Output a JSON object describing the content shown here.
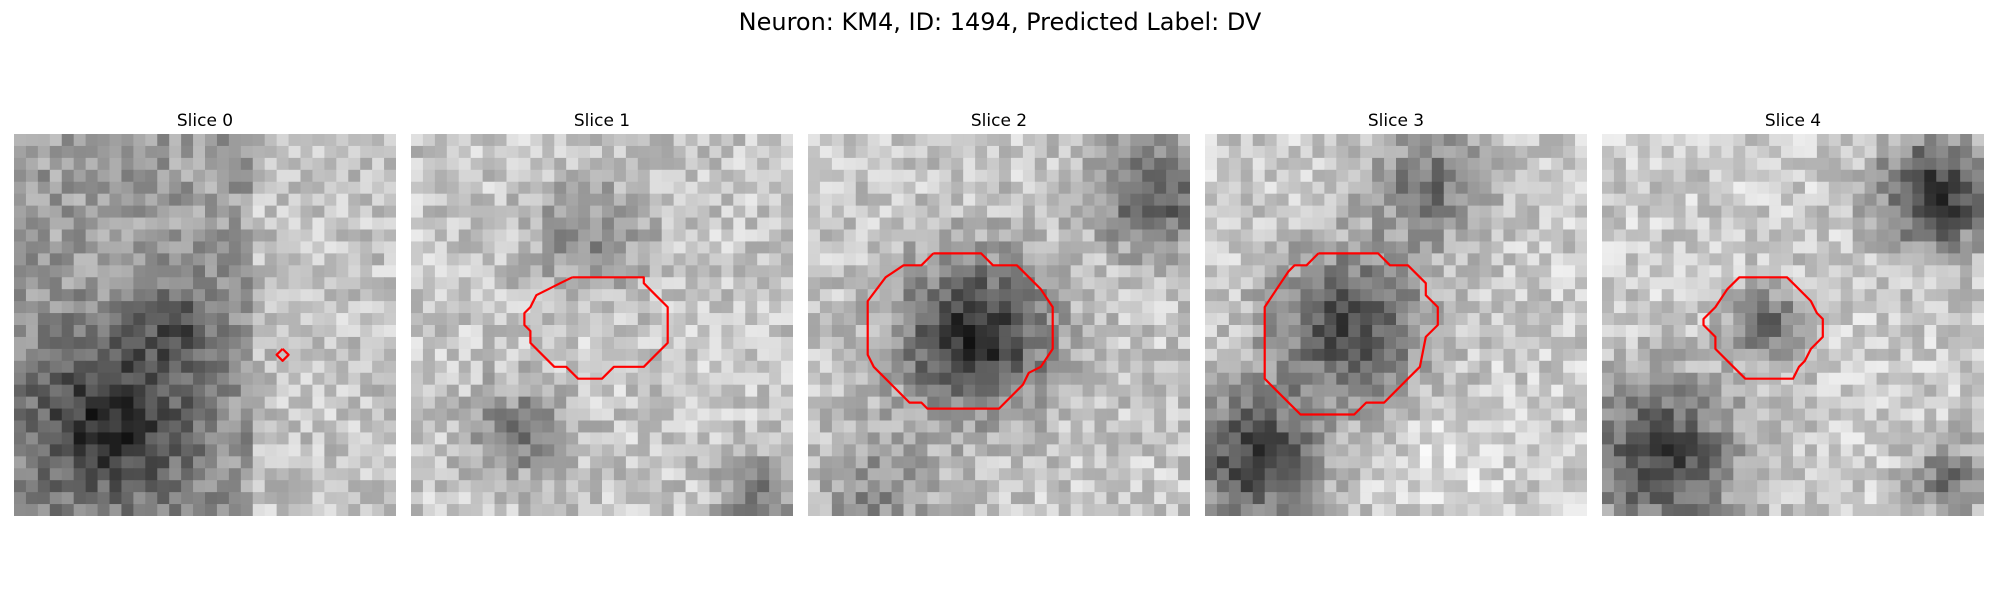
{
  "figure": {
    "title": "Neuron: KM4, ID: 1494, Predicted Label: DV"
  },
  "panels": [
    {
      "title": "Slice 0",
      "contour": [
        [
          22.5,
          18.0
        ],
        [
          23.0,
          18.5
        ],
        [
          22.5,
          19.0
        ],
        [
          22.0,
          18.5
        ],
        [
          22.5,
          18.0
        ]
      ]
    },
    {
      "title": "Slice 1",
      "contour": [
        [
          13.5,
          12.0
        ],
        [
          19.5,
          12.0
        ],
        [
          19.5,
          12.5
        ],
        [
          20.5,
          13.5
        ],
        [
          21.5,
          14.5
        ],
        [
          21.5,
          17.5
        ],
        [
          20.5,
          18.5
        ],
        [
          19.5,
          19.5
        ],
        [
          17.0,
          19.5
        ],
        [
          16.0,
          20.5
        ],
        [
          14.0,
          20.5
        ],
        [
          13.0,
          19.5
        ],
        [
          12.0,
          19.5
        ],
        [
          11.0,
          18.5
        ],
        [
          10.0,
          17.5
        ],
        [
          10.0,
          16.5
        ],
        [
          9.5,
          16.0
        ],
        [
          9.5,
          15.0
        ],
        [
          10.0,
          14.5
        ],
        [
          10.5,
          13.5
        ],
        [
          11.5,
          13.0
        ],
        [
          12.5,
          12.5
        ],
        [
          13.5,
          12.0
        ]
      ]
    },
    {
      "title": "Slice 2",
      "contour": [
        [
          10.5,
          10.0
        ],
        [
          14.5,
          10.0
        ],
        [
          15.5,
          11.0
        ],
        [
          17.5,
          11.0
        ],
        [
          19.5,
          13.0
        ],
        [
          20.5,
          14.5
        ],
        [
          20.5,
          18.0
        ],
        [
          19.5,
          19.5
        ],
        [
          18.5,
          20.0
        ],
        [
          18.0,
          21.0
        ],
        [
          16.0,
          23.0
        ],
        [
          10.0,
          23.0
        ],
        [
          9.5,
          22.5
        ],
        [
          8.5,
          22.5
        ],
        [
          6.5,
          20.5
        ],
        [
          5.5,
          19.5
        ],
        [
          5.0,
          18.5
        ],
        [
          5.0,
          14.0
        ],
        [
          6.5,
          12.0
        ],
        [
          8.0,
          11.0
        ],
        [
          9.5,
          11.0
        ],
        [
          10.5,
          10.0
        ]
      ]
    },
    {
      "title": "Slice 3",
      "contour": [
        [
          9.5,
          10.0
        ],
        [
          14.5,
          10.0
        ],
        [
          15.5,
          11.0
        ],
        [
          17.0,
          11.0
        ],
        [
          18.5,
          12.5
        ],
        [
          18.5,
          13.5
        ],
        [
          19.5,
          14.5
        ],
        [
          19.5,
          16.0
        ],
        [
          18.5,
          17.0
        ],
        [
          18.0,
          19.5
        ],
        [
          17.0,
          20.5
        ],
        [
          16.0,
          21.5
        ],
        [
          15.0,
          22.5
        ],
        [
          13.5,
          22.5
        ],
        [
          12.5,
          23.5
        ],
        [
          8.0,
          23.5
        ],
        [
          6.0,
          21.5
        ],
        [
          5.0,
          20.5
        ],
        [
          5.0,
          14.5
        ],
        [
          6.0,
          13.0
        ],
        [
          7.0,
          11.5
        ],
        [
          7.5,
          11.0
        ],
        [
          8.5,
          11.0
        ],
        [
          9.5,
          10.0
        ]
      ]
    },
    {
      "title": "Slice 4",
      "contour": [
        [
          13.5,
          12.0
        ],
        [
          15.5,
          12.0
        ],
        [
          16.5,
          13.0
        ],
        [
          17.5,
          14.0
        ],
        [
          18.0,
          15.0
        ],
        [
          18.5,
          15.5
        ],
        [
          18.5,
          17.0
        ],
        [
          17.5,
          18.0
        ],
        [
          17.0,
          19.0
        ],
        [
          16.5,
          19.5
        ],
        [
          16.0,
          20.5
        ],
        [
          12.0,
          20.5
        ],
        [
          10.5,
          19.0
        ],
        [
          9.5,
          18.0
        ],
        [
          9.5,
          17.0
        ],
        [
          8.5,
          16.0
        ],
        [
          8.5,
          15.5
        ],
        [
          9.5,
          14.5
        ],
        [
          10.5,
          13.0
        ],
        [
          11.5,
          12.0
        ],
        [
          13.5,
          12.0
        ]
      ]
    }
  ],
  "colors": {
    "contour": "#ff0000"
  }
}
